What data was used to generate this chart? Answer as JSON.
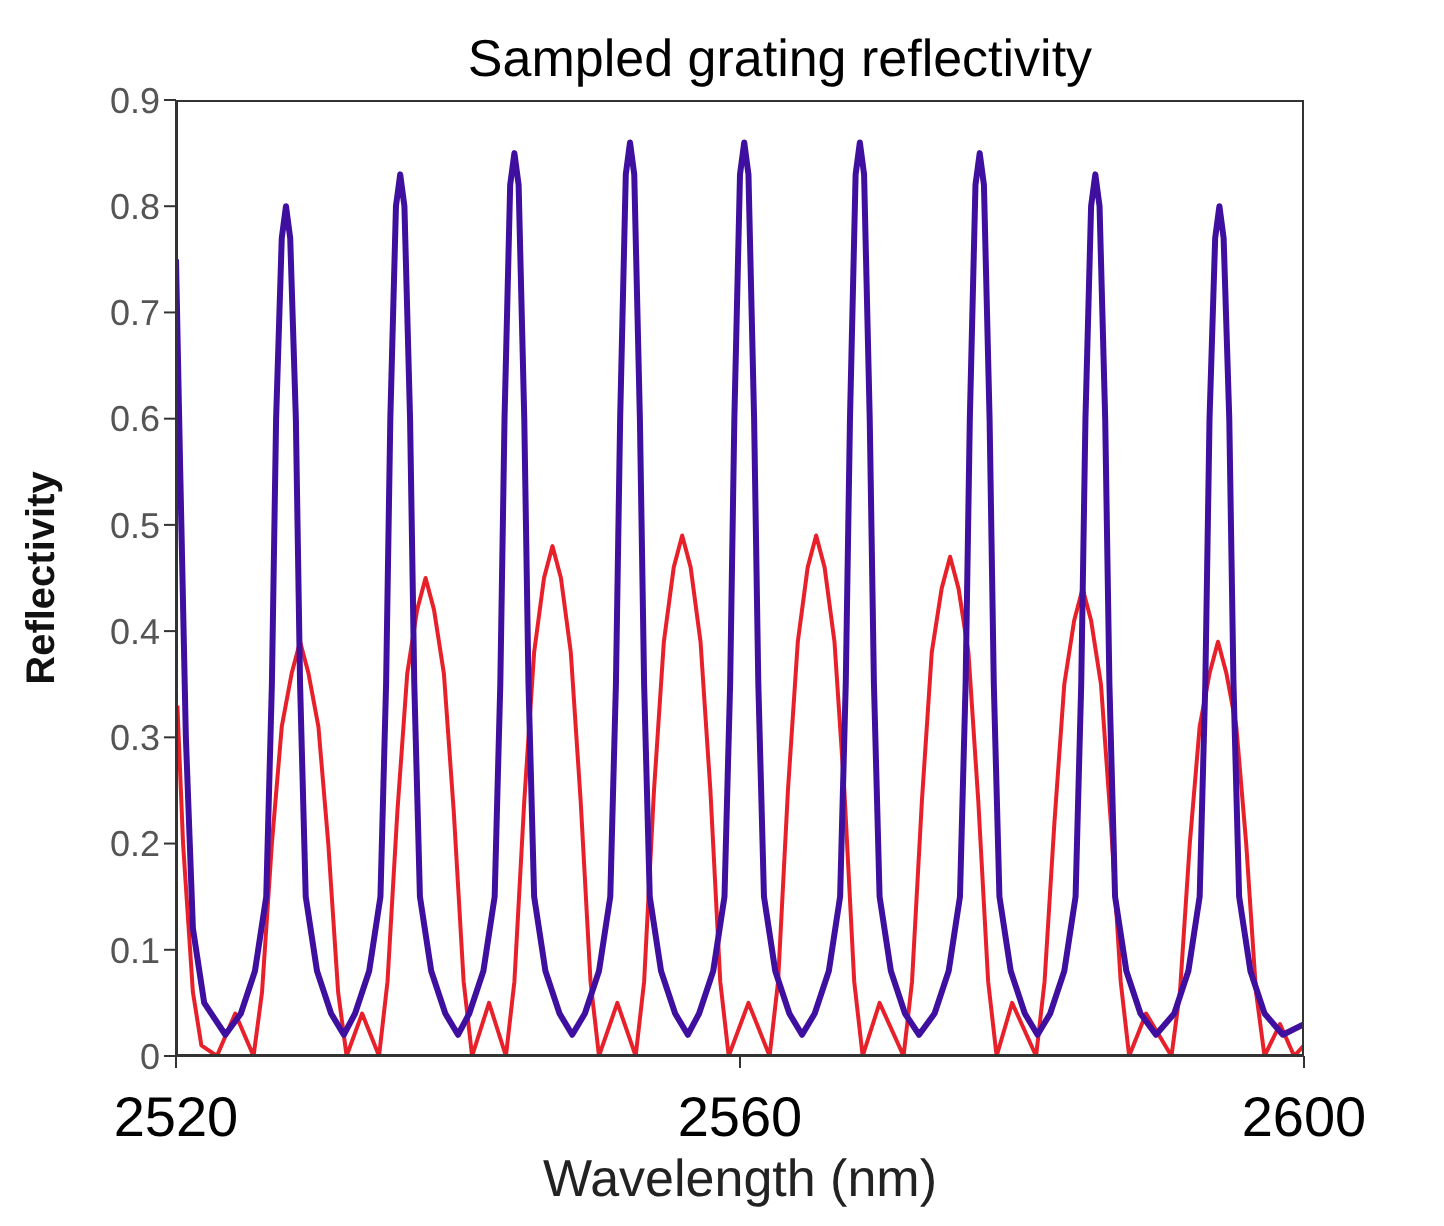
{
  "chart_data": {
    "type": "line",
    "title": "Sampled grating reflectivity",
    "xlabel": "Wavelength (nm)",
    "ylabel": "Reflectivity",
    "xlim": [
      2520,
      2600
    ],
    "xticks": [
      2520,
      2560,
      2600
    ],
    "ylim": [
      0,
      0.9
    ],
    "yticks": [
      0,
      0.1,
      0.2,
      0.3,
      0.4,
      0.5,
      0.6,
      0.7,
      0.8,
      0.9
    ],
    "series": [
      {
        "color": "#e8202a",
        "x": [
          2520.1,
          2520.5,
          2521.2,
          2521.8,
          2522.9,
          2524.2,
          2525.5,
          2526.1,
          2526.8,
          2527.5,
          2528.2,
          2528.8,
          2529.4,
          2530.1,
          2530.8,
          2531.5,
          2532.1,
          2533.2,
          2534.4,
          2535.0,
          2535.7,
          2536.4,
          2537.1,
          2537.7,
          2538.3,
          2539.0,
          2539.7,
          2540.4,
          2541.0,
          2542.2,
          2543.4,
          2544.0,
          2544.7,
          2545.4,
          2546.1,
          2546.7,
          2547.3,
          2548.0,
          2548.7,
          2549.4,
          2550.0,
          2551.3,
          2552.6,
          2553.2,
          2553.9,
          2554.6,
          2555.3,
          2555.9,
          2556.5,
          2557.2,
          2557.9,
          2558.6,
          2559.2,
          2560.6,
          2562.1,
          2562.7,
          2563.4,
          2564.1,
          2564.8,
          2565.4,
          2566.0,
          2566.7,
          2567.4,
          2568.1,
          2568.7,
          2569.9,
          2571.6,
          2572.2,
          2572.9,
          2573.6,
          2574.3,
          2574.9,
          2575.5,
          2576.2,
          2576.9,
          2577.6,
          2578.2,
          2579.3,
          2581.0,
          2581.6,
          2582.3,
          2583.0,
          2583.7,
          2584.3,
          2584.9,
          2585.6,
          2586.3,
          2587.0,
          2587.6,
          2588.8,
          2590.6,
          2591.2,
          2591.9,
          2592.6,
          2593.3,
          2593.9,
          2594.5,
          2595.2,
          2595.9,
          2596.6,
          2597.2,
          2598.3,
          2599.3,
          2600
        ],
        "values": [
          0.33,
          0.2,
          0.06,
          0.01,
          0,
          0.04,
          0,
          0.06,
          0.2,
          0.31,
          0.36,
          0.39,
          0.36,
          0.31,
          0.2,
          0.06,
          0,
          0.04,
          0,
          0.07,
          0.23,
          0.36,
          0.42,
          0.45,
          0.42,
          0.36,
          0.23,
          0.07,
          0,
          0.05,
          0,
          0.07,
          0.24,
          0.38,
          0.45,
          0.48,
          0.45,
          0.38,
          0.24,
          0.07,
          0,
          0.05,
          0,
          0.07,
          0.25,
          0.39,
          0.46,
          0.49,
          0.46,
          0.39,
          0.25,
          0.07,
          0,
          0.05,
          0,
          0.07,
          0.25,
          0.39,
          0.46,
          0.49,
          0.46,
          0.39,
          0.25,
          0.07,
          0,
          0.05,
          0,
          0.07,
          0.24,
          0.38,
          0.44,
          0.47,
          0.44,
          0.38,
          0.24,
          0.07,
          0,
          0.05,
          0,
          0.07,
          0.22,
          0.35,
          0.41,
          0.44,
          0.41,
          0.35,
          0.22,
          0.07,
          0,
          0.04,
          0,
          0.06,
          0.2,
          0.31,
          0.36,
          0.39,
          0.36,
          0.31,
          0.2,
          0.06,
          0,
          0.03,
          0,
          0.01
        ]
      },
      {
        "color": "#3f10a0",
        "x": [
          2520,
          2520.3,
          2520.7,
          2521.2,
          2522,
          2523.5,
          2524.6,
          2525.6,
          2526.4,
          2526.8,
          2527.1,
          2527.5,
          2527.8,
          2528.1,
          2528.5,
          2528.8,
          2529.2,
          2530.0,
          2531.0,
          2531.9,
          2532.7,
          2533.7,
          2534.5,
          2534.9,
          2535.2,
          2535.6,
          2535.9,
          2536.2,
          2536.6,
          2536.9,
          2537.3,
          2538.1,
          2539.1,
          2540.0,
          2540.8,
          2541.8,
          2542.6,
          2543.0,
          2543.3,
          2543.7,
          2544.0,
          2544.3,
          2544.7,
          2545.0,
          2545.4,
          2546.2,
          2547.2,
          2548.1,
          2549.0,
          2550.0,
          2550.8,
          2551.2,
          2551.5,
          2551.9,
          2552.2,
          2552.5,
          2552.9,
          2553.2,
          2553.6,
          2554.4,
          2555.4,
          2556.3,
          2557.1,
          2558.1,
          2558.9,
          2559.3,
          2559.6,
          2560.0,
          2560.3,
          2560.6,
          2561.0,
          2561.3,
          2561.7,
          2562.5,
          2563.5,
          2564.4,
          2565.3,
          2566.3,
          2567.1,
          2567.5,
          2567.8,
          2568.2,
          2568.5,
          2568.8,
          2569.2,
          2569.5,
          2569.9,
          2570.7,
          2571.7,
          2572.7,
          2573.8,
          2574.8,
          2575.6,
          2576.0,
          2576.3,
          2576.7,
          2577.0,
          2577.3,
          2577.7,
          2578.0,
          2578.4,
          2579.2,
          2580.2,
          2581.1,
          2582.0,
          2583.0,
          2583.8,
          2584.2,
          2584.5,
          2584.9,
          2585.2,
          2585.5,
          2585.9,
          2586.2,
          2586.6,
          2587.4,
          2588.4,
          2589.5,
          2590.8,
          2591.8,
          2592.6,
          2593.0,
          2593.3,
          2593.7,
          2594.0,
          2594.3,
          2594.7,
          2595.0,
          2595.4,
          2596.2,
          2597.2,
          2598.5,
          2600
        ],
        "values": [
          0.75,
          0.55,
          0.3,
          0.12,
          0.05,
          0.02,
          0.04,
          0.08,
          0.15,
          0.35,
          0.6,
          0.77,
          0.8,
          0.77,
          0.6,
          0.35,
          0.15,
          0.08,
          0.04,
          0.02,
          0.04,
          0.08,
          0.15,
          0.35,
          0.6,
          0.8,
          0.83,
          0.8,
          0.6,
          0.35,
          0.15,
          0.08,
          0.04,
          0.02,
          0.04,
          0.08,
          0.15,
          0.35,
          0.6,
          0.82,
          0.85,
          0.82,
          0.6,
          0.35,
          0.15,
          0.08,
          0.04,
          0.02,
          0.04,
          0.08,
          0.15,
          0.35,
          0.6,
          0.83,
          0.86,
          0.83,
          0.6,
          0.35,
          0.15,
          0.08,
          0.04,
          0.02,
          0.04,
          0.08,
          0.15,
          0.35,
          0.6,
          0.83,
          0.86,
          0.83,
          0.6,
          0.35,
          0.15,
          0.08,
          0.04,
          0.02,
          0.04,
          0.08,
          0.15,
          0.35,
          0.6,
          0.83,
          0.86,
          0.83,
          0.6,
          0.35,
          0.15,
          0.08,
          0.04,
          0.02,
          0.04,
          0.08,
          0.15,
          0.35,
          0.6,
          0.82,
          0.85,
          0.82,
          0.6,
          0.35,
          0.15,
          0.08,
          0.04,
          0.02,
          0.04,
          0.08,
          0.15,
          0.35,
          0.6,
          0.8,
          0.83,
          0.8,
          0.6,
          0.35,
          0.15,
          0.08,
          0.04,
          0.02,
          0.04,
          0.08,
          0.15,
          0.35,
          0.6,
          0.77,
          0.8,
          0.77,
          0.6,
          0.35,
          0.15,
          0.08,
          0.04,
          0.02,
          0.03
        ]
      }
    ]
  }
}
